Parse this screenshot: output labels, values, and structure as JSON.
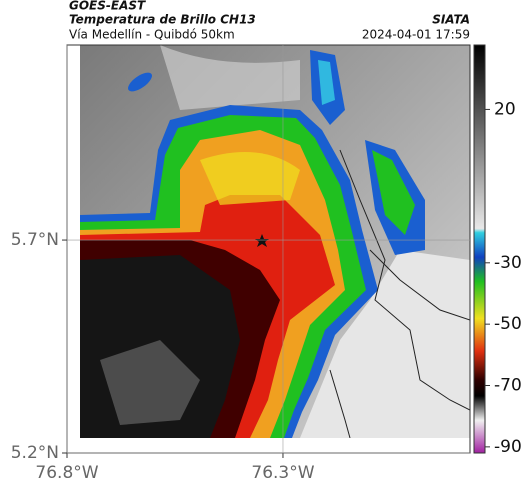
{
  "header": {
    "source": "GOES-EAST",
    "title": "Temperatura de Brillo CH13",
    "subtitle": "Vía Medellín - Quibdó 50km",
    "org": "SIATA",
    "datetime": "2024-04-01 17:59"
  },
  "map": {
    "xlim": [
      -76.8,
      -75.867
    ],
    "ylim": [
      5.2,
      6.158
    ],
    "xticks": [
      {
        "value": -76.8,
        "label": "76.8°W"
      },
      {
        "value": -76.3,
        "label": "76.3°W"
      }
    ],
    "yticks": [
      {
        "value": 5.7,
        "label": "5.7°N"
      },
      {
        "value": 5.2,
        "label": "5.2°N"
      }
    ]
  },
  "colorbar": {
    "lim": [
      -92,
      41
    ],
    "ticks": [
      20,
      -30,
      -50,
      -70,
      -90
    ]
  }
}
